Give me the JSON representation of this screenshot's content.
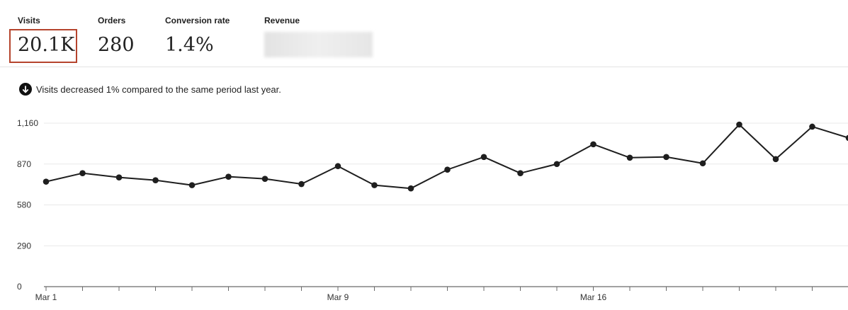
{
  "metrics": {
    "visits": {
      "label": "Visits",
      "value": "20.1K"
    },
    "orders": {
      "label": "Orders",
      "value": "280"
    },
    "conversion": {
      "label": "Conversion rate",
      "value": "1.4%"
    },
    "revenue": {
      "label": "Revenue",
      "value": ""
    }
  },
  "notice": {
    "icon": "arrow-down-circle-icon",
    "text": "Visits decreased 1% compared to the same period last year."
  },
  "colors": {
    "line": "#1e1e1e",
    "grid": "#e8e8e8",
    "selected_border": "#b5442d"
  },
  "chart_data": {
    "type": "line",
    "title": "",
    "xlabel": "",
    "ylabel": "",
    "ylim": [
      0,
      1160
    ],
    "y_ticks": [
      0,
      290,
      580,
      870,
      1160
    ],
    "y_tick_labels": [
      "0",
      "290",
      "580",
      "870",
      "1,160"
    ],
    "x_tick_labels": [
      {
        "index": 0,
        "label": "Mar 1"
      },
      {
        "index": 8,
        "label": "Mar 9"
      },
      {
        "index": 15,
        "label": "Mar 16"
      }
    ],
    "grid": true,
    "series": [
      {
        "name": "",
        "values": [
          745,
          805,
          775,
          755,
          720,
          780,
          765,
          728,
          855,
          720,
          697,
          830,
          920,
          805,
          870,
          1010,
          915,
          920,
          875,
          1150,
          905,
          1135,
          1055
        ]
      }
    ]
  }
}
